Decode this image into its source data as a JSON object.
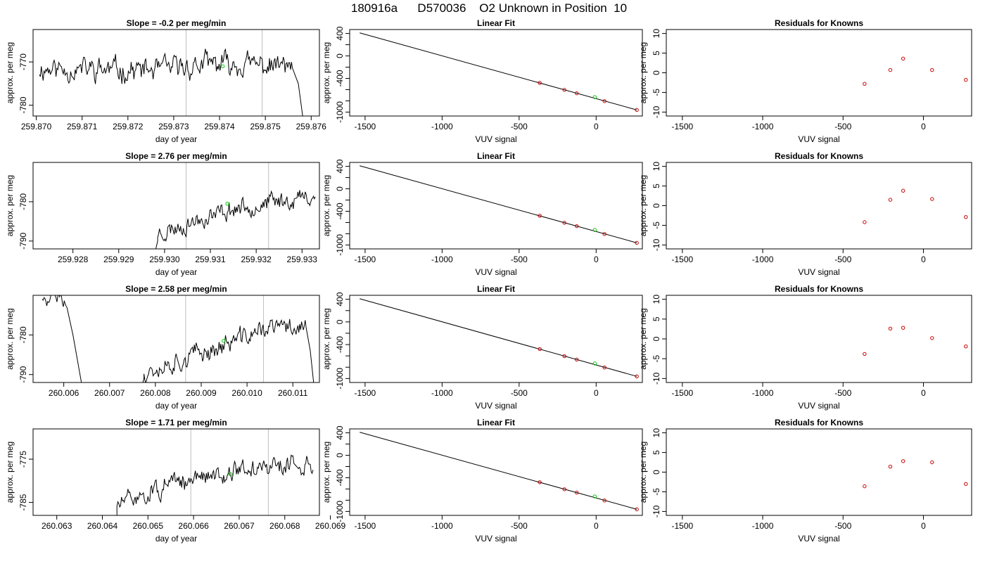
{
  "page_title": "180916a      D570036    O2 Unknown in Position  10",
  "colors": {
    "line": "#000000",
    "gridline": "#bebebe",
    "known_point": "#cc0000",
    "unknown_point": "#00cc00",
    "frame": "#000000"
  },
  "chart_data": [
    {
      "type": "line",
      "title": "Slope =  -0.2  per meg/min",
      "xlabel": "day of year",
      "ylabel": "approx. per meg",
      "xlim": [
        259.86993,
        259.87618
      ],
      "ylim": [
        -782.5,
        -762.5
      ],
      "xticks": [
        "259.870",
        "259.871",
        "259.872",
        "259.873",
        "259.874",
        "259.875",
        "259.876"
      ],
      "yticks": [
        "-770",
        "-780"
      ],
      "vlines": [
        259.87327,
        259.87493
      ],
      "unknown_point": [
        259.87407,
        -771.0
      ],
      "series": [
        {
          "start": 259.87007,
          "step": 2e-05,
          "seed": 11,
          "envelope": [
            [
              259.87007,
              -771.5
            ],
            [
              259.8726,
              -772.0
            ],
            [
              259.8738,
              -770.5
            ],
            [
              259.8756,
              -771.0
            ]
          ],
          "amp": 2.3,
          "tail": [
            [
              259.87572,
              -775.0
            ],
            [
              259.87582,
              -783.0
            ]
          ]
        }
      ]
    },
    {
      "type": "line",
      "title": "Linear Fit",
      "xlabel": "VUV signal",
      "ylabel": "approx. per meg",
      "xlim": [
        -1600,
        300
      ],
      "ylim": [
        -1070,
        470
      ],
      "xticks": [
        "-1500",
        "-1000",
        "-500",
        "0"
      ],
      "yticks": [
        "400",
        "0",
        "-400",
        "-1000"
      ],
      "yticks_minor": [
        200,
        -200,
        -600,
        -800
      ],
      "fit_line": [
        [
          -1535,
          410
        ],
        [
          264,
          -962
        ]
      ],
      "knowns": [
        [
          -366,
          -480
        ],
        [
          -206,
          -605
        ],
        [
          -126,
          -665
        ],
        [
          54,
          -805
        ],
        [
          264,
          -962
        ]
      ],
      "unknown_point": [
        -9,
        -733
      ]
    },
    {
      "type": "scatter",
      "title": "Residuals for Knowns",
      "xlabel": "VUV signal",
      "ylabel": "approx. per meg",
      "xlim": [
        -1600,
        300
      ],
      "ylim": [
        -11,
        11
      ],
      "xticks": [
        "-1500",
        "-1000",
        "-500",
        "0"
      ],
      "yticks": [
        "10",
        "5",
        "0",
        "-5",
        "-10"
      ],
      "points": [
        [
          -366,
          -2.8
        ],
        [
          -206,
          0.7
        ],
        [
          -126,
          3.6
        ],
        [
          54,
          0.7
        ],
        [
          264,
          -1.8
        ]
      ]
    },
    {
      "type": "line",
      "title": "Slope =  2.76  per meg/min",
      "xlabel": "day of year",
      "ylabel": "approx. per meg",
      "xlim": [
        259.92713,
        259.93338
      ],
      "ylim": [
        -792,
        -770
      ],
      "xticks": [
        "259.928",
        "259.929",
        "259.930",
        "259.931",
        "259.932",
        "259.933"
      ],
      "yticks": [
        "-780",
        "-790"
      ],
      "vlines": [
        259.93047,
        259.93227
      ],
      "unknown_point": [
        259.93137,
        -780.5
      ],
      "series": [
        {
          "start": 259.92985,
          "step": 2e-05,
          "seed": 23,
          "head": [
            [
              259.92975,
              -795
            ],
            [
              259.92985,
              -790
            ]
          ],
          "envelope": [
            [
              259.92985,
              -788.0
            ],
            [
              259.9304,
              -786.0
            ],
            [
              259.931,
              -783.5
            ],
            [
              259.9316,
              -781.5
            ],
            [
              259.9333,
              -778.5
            ]
          ],
          "amp": 2.0,
          "end": 259.9333
        }
      ]
    },
    {
      "type": "line",
      "title": "Linear Fit",
      "xlabel": "VUV signal",
      "ylabel": "approx. per meg",
      "xlim": [
        -1600,
        300
      ],
      "ylim": [
        -1070,
        470
      ],
      "xticks": [
        "-1500",
        "-1000",
        "-500",
        "0"
      ],
      "yticks": [
        "400",
        "0",
        "-400",
        "-1000"
      ],
      "yticks_minor": [
        200,
        -200,
        -600,
        -800
      ],
      "fit_line": [
        [
          -1535,
          410
        ],
        [
          264,
          -962
        ]
      ],
      "knowns": [
        [
          -366,
          -480
        ],
        [
          -206,
          -605
        ],
        [
          -126,
          -665
        ],
        [
          54,
          -805
        ],
        [
          264,
          -962
        ]
      ],
      "unknown_point": [
        -9,
        -733
      ]
    },
    {
      "type": "scatter",
      "title": "Residuals for Knowns",
      "xlabel": "VUV signal",
      "ylabel": "approx. per meg",
      "xlim": [
        -1600,
        300
      ],
      "ylim": [
        -11,
        11
      ],
      "xticks": [
        "-1500",
        "-1000",
        "-500",
        "0"
      ],
      "yticks": [
        "10",
        "5",
        "0",
        "-5",
        "-10"
      ],
      "points": [
        [
          -366,
          -4.2
        ],
        [
          -206,
          1.5
        ],
        [
          -126,
          3.8
        ],
        [
          54,
          1.7
        ],
        [
          264,
          -2.9
        ]
      ]
    },
    {
      "type": "line",
      "title": "Slope =  2.58  per meg/min",
      "xlabel": "day of year",
      "ylabel": "approx. per meg",
      "xlim": [
        260.00533,
        260.01158
      ],
      "ylim": [
        -792,
        -770
      ],
      "xticks": [
        "260.006",
        "260.007",
        "260.008",
        "260.009",
        "260.010",
        "260.011"
      ],
      "yticks": [
        "-780",
        "-790"
      ],
      "vlines": [
        260.00866,
        260.01036
      ],
      "unknown_point": [
        260.00949,
        -781.5
      ],
      "series": [
        {
          "start": 260.00553,
          "step": 2e-05,
          "seed": 5,
          "envelope": [
            [
              260.00553,
              -770.5
            ],
            [
              260.00608,
              -771.0
            ]
          ],
          "amp": 1.5,
          "end": 260.00608,
          "tail": [
            [
              260.0062,
              -780
            ],
            [
              260.0064,
              -793
            ]
          ]
        },
        {
          "start": 260.00775,
          "step": 2e-05,
          "seed": 37,
          "head": [
            [
              260.00765,
              -795
            ],
            [
              260.00775,
              -791
            ]
          ],
          "envelope": [
            [
              260.00775,
              -789.0
            ],
            [
              260.0086,
              -786.0
            ],
            [
              260.0094,
              -783.0
            ],
            [
              260.0104,
              -778.5
            ],
            [
              260.0113,
              -777.5
            ]
          ],
          "amp": 2.2,
          "end": 260.0113,
          "tail": [
            [
              260.01138,
              -784
            ],
            [
              260.01148,
              -795
            ]
          ]
        }
      ]
    },
    {
      "type": "line",
      "title": "Linear Fit",
      "xlabel": "VUV signal",
      "ylabel": "approx. per meg",
      "xlim": [
        -1600,
        300
      ],
      "ylim": [
        -1070,
        470
      ],
      "xticks": [
        "-1500",
        "-1000",
        "-500",
        "0"
      ],
      "yticks": [
        "400",
        "0",
        "-400",
        "-1000"
      ],
      "yticks_minor": [
        200,
        -200,
        -600,
        -800
      ],
      "fit_line": [
        [
          -1535,
          410
        ],
        [
          264,
          -962
        ]
      ],
      "knowns": [
        [
          -366,
          -480
        ],
        [
          -206,
          -605
        ],
        [
          -126,
          -665
        ],
        [
          54,
          -805
        ],
        [
          264,
          -962
        ]
      ],
      "unknown_point": [
        -9,
        -733
      ]
    },
    {
      "type": "scatter",
      "title": "Residuals for Knowns",
      "xlabel": "VUV signal",
      "ylabel": "approx. per meg",
      "xlim": [
        -1600,
        300
      ],
      "ylim": [
        -11,
        11
      ],
      "xticks": [
        "-1500",
        "-1000",
        "-500",
        "0"
      ],
      "yticks": [
        "10",
        "5",
        "0",
        "-5",
        "-10"
      ],
      "points": [
        [
          -366,
          -3.8
        ],
        [
          -206,
          2.6
        ],
        [
          -126,
          2.8
        ],
        [
          54,
          0.2
        ],
        [
          264,
          -1.9
        ]
      ]
    },
    {
      "type": "line",
      "title": "Slope =  1.71  per meg/min",
      "xlabel": "day of year",
      "ylabel": "approx. per meg",
      "xlim": [
        260.06248,
        260.06876
      ],
      "ylim": [
        -788,
        -768
      ],
      "xticks": [
        "260.063",
        "260.064",
        "260.065",
        "260.066",
        "260.067",
        "260.068",
        "260.069"
      ],
      "yticks": [
        "-775",
        "-785"
      ],
      "vlines": [
        260.06594,
        260.06764
      ],
      "unknown_point": [
        260.06681,
        -778.5
      ],
      "series": [
        {
          "start": 260.06432,
          "step": 2e-05,
          "seed": 51,
          "head": [
            [
              260.06422,
              -792
            ],
            [
              260.06432,
              -788
            ]
          ],
          "envelope": [
            [
              260.06432,
              -785.5
            ],
            [
              260.0654,
              -781.5
            ],
            [
              260.0666,
              -778.0
            ],
            [
              260.0686,
              -776.0
            ]
          ],
          "amp": 1.9,
          "end": 260.06862
        }
      ]
    },
    {
      "type": "line",
      "title": "Linear Fit",
      "xlabel": "VUV signal",
      "ylabel": "approx. per meg",
      "xlim": [
        -1600,
        300
      ],
      "ylim": [
        -1070,
        470
      ],
      "xticks": [
        "-1500",
        "-1000",
        "-500",
        "0"
      ],
      "yticks": [
        "400",
        "0",
        "-400",
        "-1000"
      ],
      "yticks_minor": [
        200,
        -200,
        -600,
        -800
      ],
      "fit_line": [
        [
          -1535,
          410
        ],
        [
          264,
          -962
        ]
      ],
      "knowns": [
        [
          -366,
          -480
        ],
        [
          -206,
          -605
        ],
        [
          -126,
          -665
        ],
        [
          54,
          -805
        ],
        [
          264,
          -962
        ]
      ],
      "unknown_point": [
        -9,
        -733
      ]
    },
    {
      "type": "scatter",
      "title": "Residuals for Knowns",
      "xlabel": "VUV signal",
      "ylabel": "approx. per meg",
      "xlim": [
        -1600,
        300
      ],
      "ylim": [
        -11,
        11
      ],
      "xticks": [
        "-1500",
        "-1000",
        "-500",
        "0"
      ],
      "yticks": [
        "10",
        "5",
        "0",
        "-5",
        "-10"
      ],
      "points": [
        [
          -366,
          -3.6
        ],
        [
          -206,
          1.4
        ],
        [
          -126,
          2.8
        ],
        [
          54,
          2.5
        ],
        [
          264,
          -3.0
        ]
      ]
    }
  ]
}
